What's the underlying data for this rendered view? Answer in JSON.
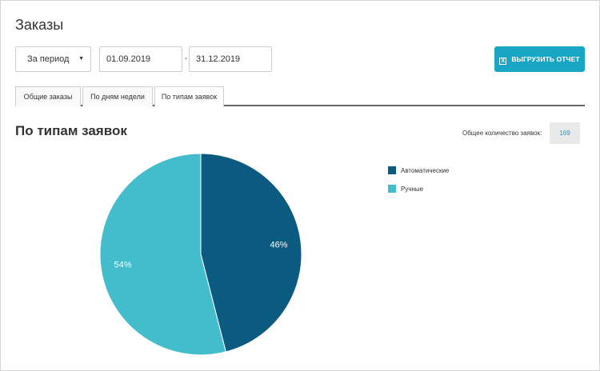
{
  "page": {
    "title": "Заказы"
  },
  "filters": {
    "period_label": "За период",
    "date_from": "01.09.2019",
    "date_separator": "-",
    "date_to": "31.12.2019"
  },
  "toolbar": {
    "export_label": "ВЫГРУЗИТЬ ОТЧЕТ",
    "export_icon": "excel-icon"
  },
  "tabs": [
    {
      "label": "Общие заказы",
      "active": false
    },
    {
      "label": "По дням недели",
      "active": false
    },
    {
      "label": "По типам заявок",
      "active": true
    }
  ],
  "section": {
    "title": "По типам заявок",
    "total_label": "Общее количество заявок:",
    "total_value": "169"
  },
  "colors": {
    "accent": "#19a5c4",
    "auto": "#0b5b80",
    "manual": "#43bccb"
  },
  "chart_data": {
    "type": "pie",
    "title": "",
    "slices": [
      {
        "name": "Автоматические",
        "value": 46,
        "label": "46%",
        "color": "#0b5b80"
      },
      {
        "name": "Ручные",
        "value": 54,
        "label": "54%",
        "color": "#43bccb"
      }
    ],
    "legend_position": "right"
  }
}
